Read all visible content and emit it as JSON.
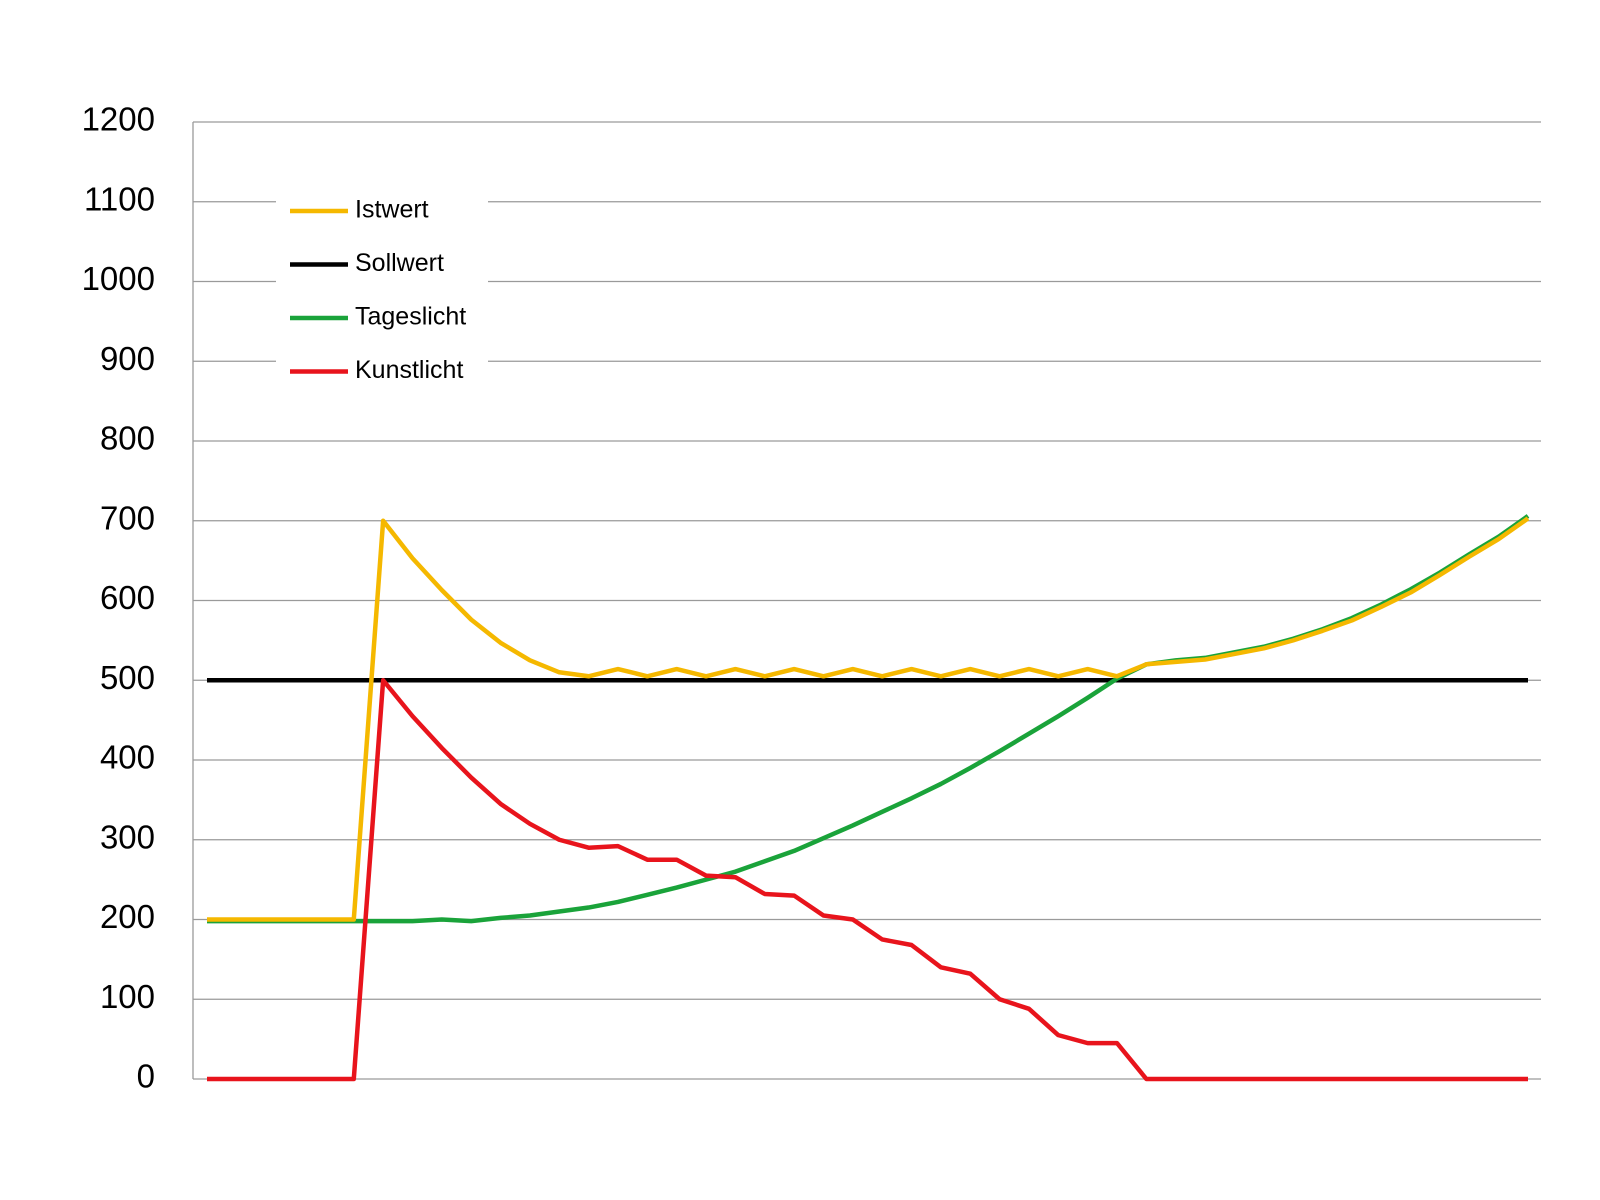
{
  "chart_data": {
    "type": "line",
    "categories": [
      null,
      null,
      null,
      null,
      null,
      null,
      null,
      null,
      null,
      null,
      null,
      null,
      null,
      null,
      null,
      null,
      null,
      null,
      null,
      null,
      null,
      null,
      null,
      null,
      null,
      null,
      null,
      null,
      null,
      null,
      null,
      null,
      null,
      null,
      null,
      null,
      null,
      null,
      null,
      null,
      null,
      null,
      null,
      null,
      null,
      null
    ],
    "series": [
      {
        "name": "Istwert",
        "color": "#f5b800",
        "values": [
          200,
          200,
          200,
          200,
          200,
          200,
          700,
          653,
          613,
          576,
          547,
          525,
          510,
          505,
          514,
          505,
          514,
          505,
          514,
          505,
          514,
          505,
          514,
          505,
          514,
          505,
          514,
          505,
          514,
          505,
          514,
          505,
          520,
          523,
          526,
          533,
          540,
          550,
          562,
          575,
          592,
          610,
          632,
          655,
          677,
          703
        ]
      },
      {
        "name": "Sollwert",
        "color": "#000000",
        "values": [
          500,
          500,
          500,
          500,
          500,
          500,
          500,
          500,
          500,
          500,
          500,
          500,
          500,
          500,
          500,
          500,
          500,
          500,
          500,
          500,
          500,
          500,
          500,
          500,
          500,
          500,
          500,
          500,
          500,
          500,
          500,
          500,
          500,
          500,
          500,
          500,
          500,
          500,
          500,
          500,
          500,
          500,
          500,
          500,
          500,
          500
        ]
      },
      {
        "name": "Tageslicht",
        "color": "#1aa33a",
        "values": [
          198,
          198,
          198,
          198,
          198,
          198,
          198,
          198,
          200,
          198,
          202,
          205,
          210,
          215,
          222,
          231,
          240,
          250,
          260,
          273,
          286,
          302,
          318,
          335,
          352,
          370,
          390,
          411,
          433,
          455,
          478,
          502,
          520,
          525,
          528,
          535,
          542,
          552,
          564,
          578,
          595,
          614,
          635,
          658,
          680,
          706
        ]
      },
      {
        "name": "Kunstlicht",
        "color": "#e8141c",
        "values": [
          0,
          0,
          0,
          0,
          0,
          0,
          500,
          455,
          415,
          378,
          345,
          320,
          300,
          290,
          292,
          275,
          275,
          255,
          253,
          232,
          230,
          205,
          200,
          175,
          168,
          140,
          132,
          100,
          88,
          55,
          45,
          45,
          0,
          0,
          0,
          0,
          0,
          0,
          0,
          0,
          0,
          0,
          0,
          0,
          0,
          0
        ]
      }
    ],
    "ylim": [
      0,
      1200
    ],
    "yticks": [
      0,
      100,
      200,
      300,
      400,
      500,
      600,
      700,
      800,
      900,
      1000,
      1100,
      1200
    ],
    "grid": true,
    "legend": "upper-left"
  }
}
